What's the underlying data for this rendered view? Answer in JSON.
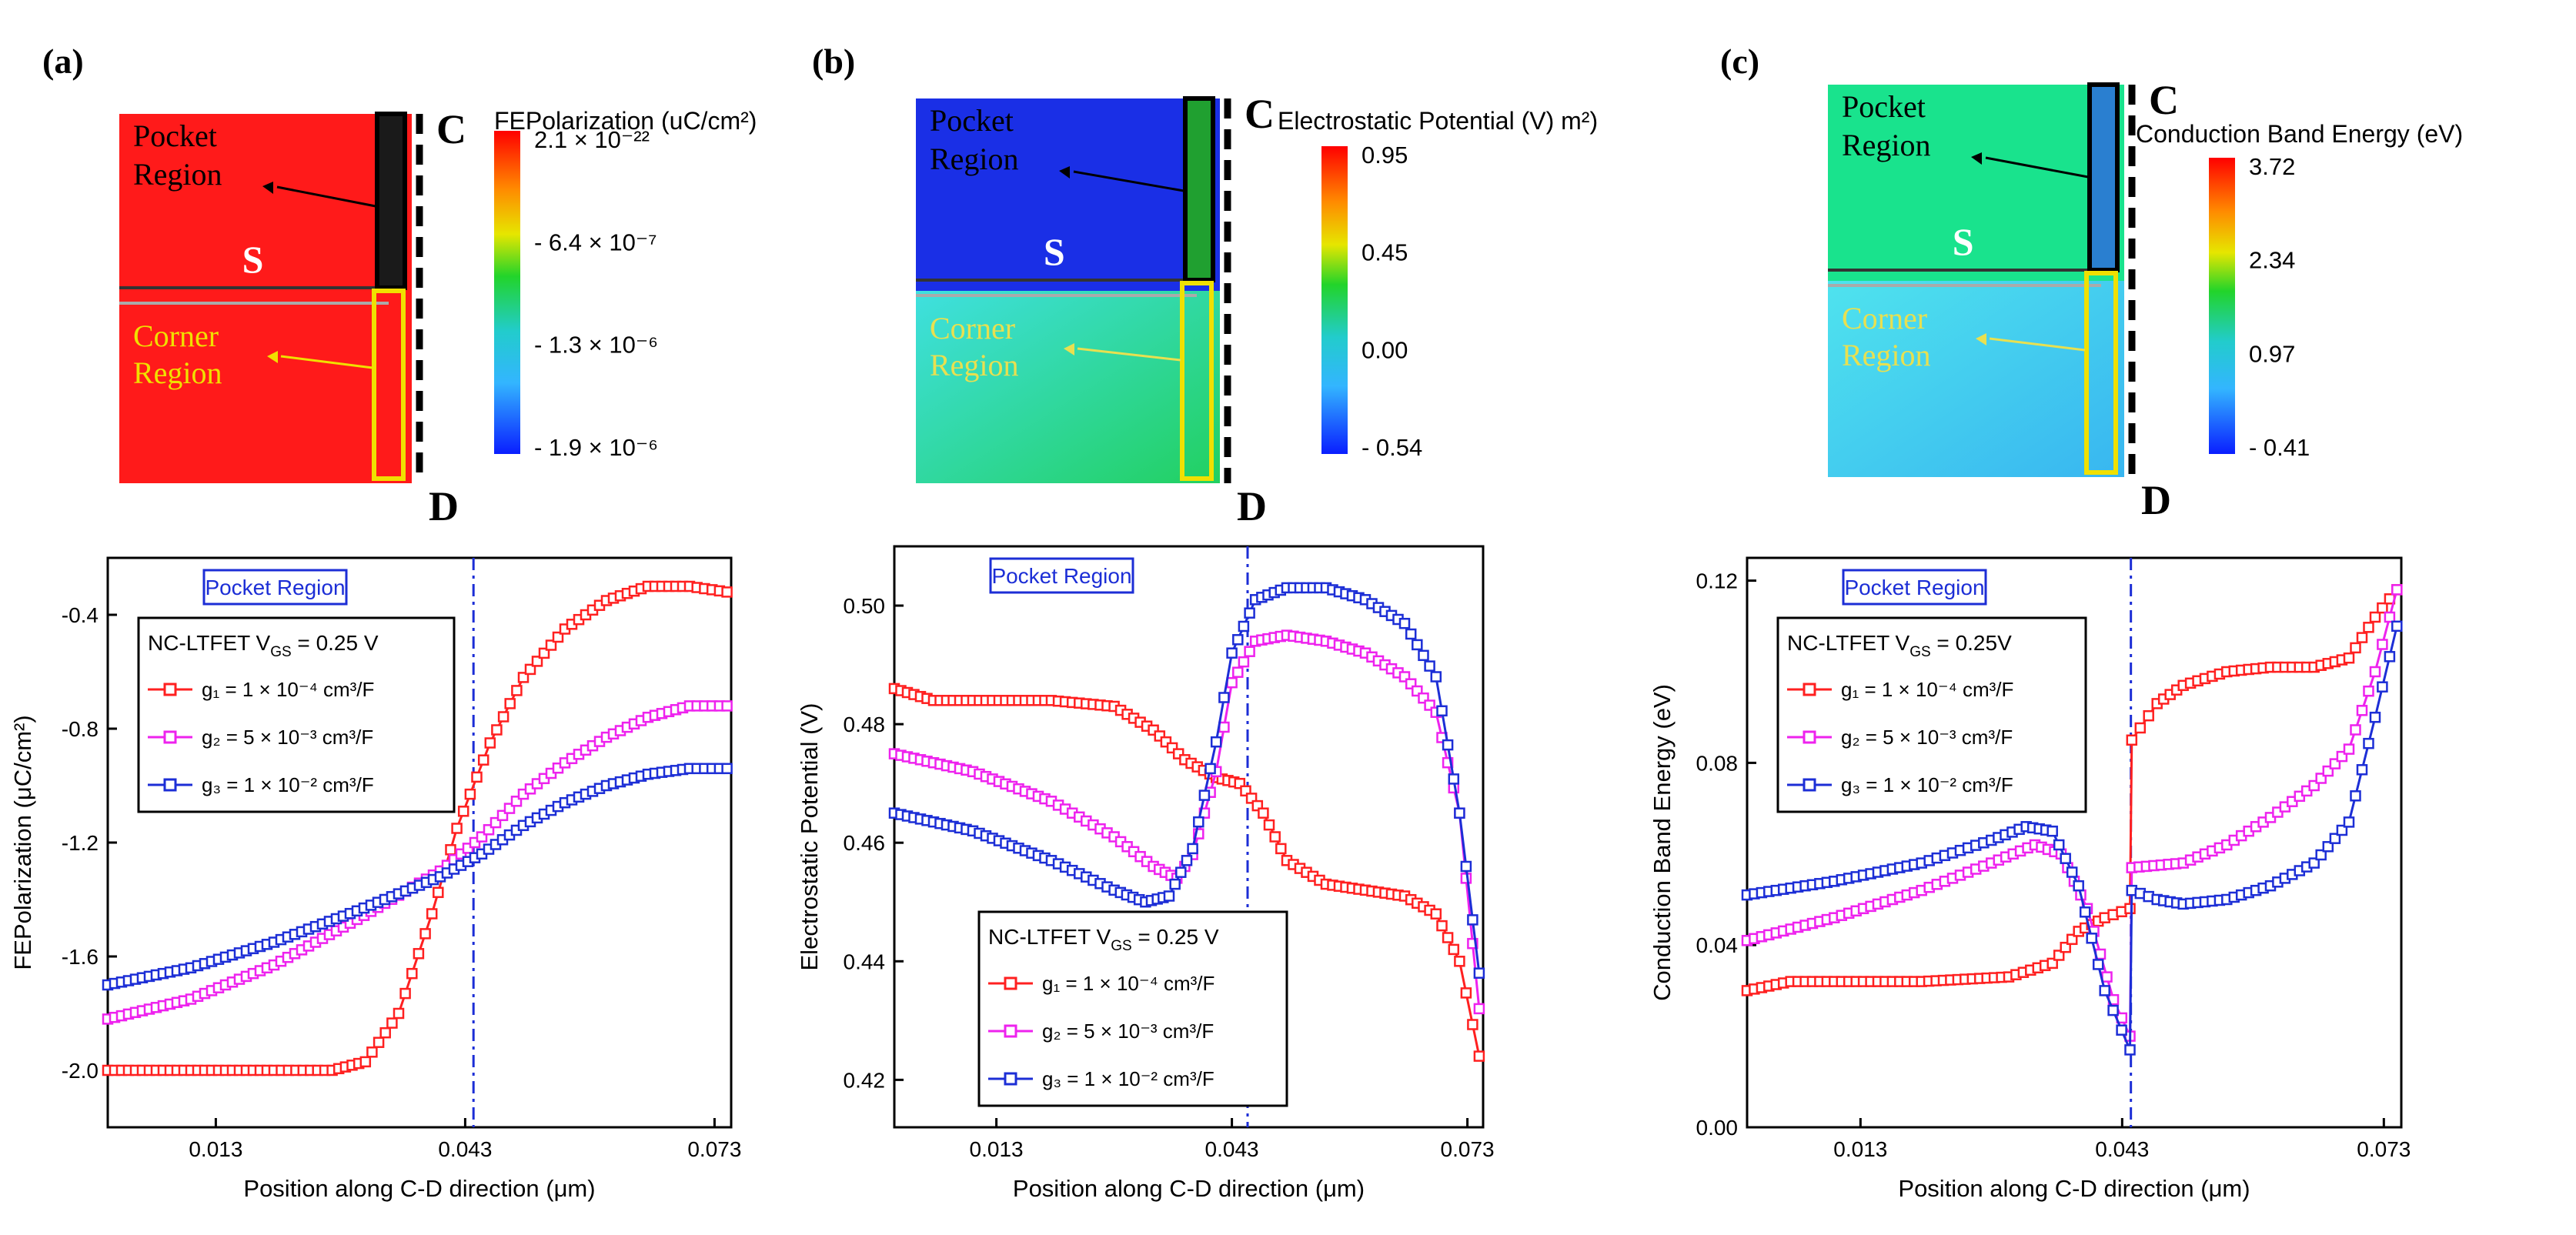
{
  "panels": [
    {
      "label": "(a)",
      "top_label": "C",
      "bottom_label": "D",
      "source_label": "S",
      "pocket_label": [
        "Pocket",
        "Region"
      ],
      "corner_label": [
        "Corner",
        "Region"
      ],
      "map_color": "#ff1a1a",
      "colorbar": {
        "title": "FEPolarization (uC/cm²)",
        "ticks": [
          "2.1 × 10⁻²²",
          "- 6.4 × 10⁻⁷",
          "- 1.3 × 10⁻⁶",
          "- 1.9 × 10⁻⁶"
        ]
      }
    },
    {
      "label": "(b)",
      "top_label": "C",
      "bottom_label": "D",
      "source_label": "S",
      "pocket_label": [
        "Pocket",
        "Region"
      ],
      "corner_label": [
        "Corner",
        "Region"
      ],
      "map_color": "#1a2fe6",
      "colorbar": {
        "title": "Electrostatic Potential (V) m²)",
        "ticks": [
          "0.95",
          "0.45",
          "0.00",
          "- 0.54"
        ]
      }
    },
    {
      "label": "(c)",
      "top_label": "C",
      "bottom_label": "D",
      "source_label": "S",
      "pocket_label": [
        "Pocket",
        "Region"
      ],
      "corner_label": [
        "Corner",
        "Region"
      ],
      "map_color": "#19e38d",
      "colorbar": {
        "title": "Conduction Band Energy (eV)",
        "ticks": [
          "3.72",
          "2.34",
          "0.97",
          "- 0.41"
        ]
      }
    }
  ],
  "chart_data": [
    {
      "type": "line",
      "panel": "a",
      "xlabel": "Position along C-D direction (μm)",
      "ylabel": "FEPolarization (μC/cm²)",
      "xlim": [
        0,
        0.075
      ],
      "ylim": [
        -2.2,
        -0.2
      ],
      "xticks": [
        0.013,
        0.043,
        0.073
      ],
      "xtick_labels": [
        "0.013",
        "0.043",
        "0.073"
      ],
      "yticks": [
        -2.0,
        -1.6,
        -1.2,
        -0.8,
        -0.4
      ],
      "ytick_labels": [
        "-2.0",
        "-1.6",
        "-1.2",
        "-0.8",
        "-0.4"
      ],
      "vline_x": 0.044,
      "region_label": "Pocket Region",
      "legend_title": "NC-LTFET V",
      "legend_title_sub": "GS",
      "legend_title_suffix": " = 0.25 V",
      "series": [
        {
          "name": "g₁ = 1 × 10⁻⁴ cm³/F",
          "color": "#ff2020",
          "points": [
            [
              0.0,
              -2.0
            ],
            [
              0.01,
              -2.0
            ],
            [
              0.02,
              -2.0
            ],
            [
              0.027,
              -2.0
            ],
            [
              0.031,
              -1.97
            ],
            [
              0.035,
              -1.8
            ],
            [
              0.039,
              -1.45
            ],
            [
              0.042,
              -1.15
            ],
            [
              0.046,
              -0.85
            ],
            [
              0.05,
              -0.62
            ],
            [
              0.055,
              -0.45
            ],
            [
              0.06,
              -0.35
            ],
            [
              0.065,
              -0.3
            ],
            [
              0.07,
              -0.3
            ],
            [
              0.0745,
              -0.32
            ]
          ]
        },
        {
          "name": "g₂ = 5 × 10⁻³ cm³/F",
          "color": "#ee22ee",
          "points": [
            [
              0.0,
              -1.82
            ],
            [
              0.01,
              -1.75
            ],
            [
              0.02,
              -1.63
            ],
            [
              0.03,
              -1.47
            ],
            [
              0.04,
              -1.3
            ],
            [
              0.045,
              -1.18
            ],
            [
              0.05,
              -1.03
            ],
            [
              0.055,
              -0.92
            ],
            [
              0.06,
              -0.83
            ],
            [
              0.065,
              -0.76
            ],
            [
              0.07,
              -0.72
            ],
            [
              0.0745,
              -0.72
            ]
          ]
        },
        {
          "name": "g₃ = 1 × 10⁻² cm³/F",
          "color": "#1c2ed6",
          "points": [
            [
              0.0,
              -1.7
            ],
            [
              0.01,
              -1.64
            ],
            [
              0.02,
              -1.55
            ],
            [
              0.03,
              -1.44
            ],
            [
              0.04,
              -1.32
            ],
            [
              0.045,
              -1.24
            ],
            [
              0.05,
              -1.14
            ],
            [
              0.055,
              -1.06
            ],
            [
              0.06,
              -1.0
            ],
            [
              0.065,
              -0.96
            ],
            [
              0.07,
              -0.94
            ],
            [
              0.0745,
              -0.94
            ]
          ]
        }
      ]
    },
    {
      "type": "line",
      "panel": "b",
      "xlabel": "Position along C-D direction (μm)",
      "ylabel": "Electrostatic Potential (V)",
      "xlim": [
        0,
        0.075
      ],
      "ylim": [
        0.412,
        0.51
      ],
      "xticks": [
        0.013,
        0.043,
        0.073
      ],
      "xtick_labels": [
        "0.013",
        "0.043",
        "0.073"
      ],
      "yticks": [
        0.42,
        0.44,
        0.46,
        0.48,
        0.5
      ],
      "ytick_labels": [
        "0.42",
        "0.44",
        "0.46",
        "0.48",
        "0.50"
      ],
      "vline_x": 0.045,
      "region_label": "Pocket Region",
      "legend_title": "NC-LTFET V",
      "legend_title_sub": "GS",
      "legend_title_suffix": " = 0.25 V",
      "series": [
        {
          "name": "g₁ = 1 × 10⁻⁴ cm³/F",
          "color": "#ff2020",
          "points": [
            [
              0.0,
              0.486
            ],
            [
              0.005,
              0.484
            ],
            [
              0.01,
              0.484
            ],
            [
              0.02,
              0.484
            ],
            [
              0.028,
              0.483
            ],
            [
              0.033,
              0.479
            ],
            [
              0.037,
              0.474
            ],
            [
              0.041,
              0.471
            ],
            [
              0.044,
              0.47
            ],
            [
              0.047,
              0.465
            ],
            [
              0.05,
              0.457
            ],
            [
              0.055,
              0.453
            ],
            [
              0.06,
              0.452
            ],
            [
              0.065,
              0.451
            ],
            [
              0.069,
              0.448
            ],
            [
              0.072,
              0.44
            ],
            [
              0.0745,
              0.424
            ]
          ]
        },
        {
          "name": "g₂ = 5 × 10⁻³ cm³/F",
          "color": "#ee22ee",
          "points": [
            [
              0.0,
              0.475
            ],
            [
              0.01,
              0.472
            ],
            [
              0.02,
              0.467
            ],
            [
              0.028,
              0.461
            ],
            [
              0.033,
              0.456
            ],
            [
              0.036,
              0.454
            ],
            [
              0.038,
              0.458
            ],
            [
              0.041,
              0.472
            ],
            [
              0.043,
              0.487
            ],
            [
              0.046,
              0.494
            ],
            [
              0.05,
              0.495
            ],
            [
              0.055,
              0.494
            ],
            [
              0.06,
              0.492
            ],
            [
              0.065,
              0.488
            ],
            [
              0.069,
              0.482
            ],
            [
              0.072,
              0.465
            ],
            [
              0.0745,
              0.432
            ]
          ]
        },
        {
          "name": "g₃ = 1 × 10⁻² cm³/F",
          "color": "#1c2ed6",
          "points": [
            [
              0.0,
              0.465
            ],
            [
              0.01,
              0.462
            ],
            [
              0.02,
              0.457
            ],
            [
              0.028,
              0.452
            ],
            [
              0.032,
              0.45
            ],
            [
              0.035,
              0.451
            ],
            [
              0.038,
              0.459
            ],
            [
              0.041,
              0.477
            ],
            [
              0.043,
              0.492
            ],
            [
              0.046,
              0.501
            ],
            [
              0.05,
              0.503
            ],
            [
              0.055,
              0.503
            ],
            [
              0.06,
              0.501
            ],
            [
              0.065,
              0.497
            ],
            [
              0.069,
              0.488
            ],
            [
              0.072,
              0.465
            ],
            [
              0.0745,
              0.438
            ]
          ]
        }
      ]
    },
    {
      "type": "line",
      "panel": "c",
      "xlabel": "Position along C-D direction (μm)",
      "ylabel": "Conduction Band Energy (eV)",
      "xlim": [
        0,
        0.075
      ],
      "ylim": [
        0,
        0.125
      ],
      "xticks": [
        0.013,
        0.043,
        0.073
      ],
      "xtick_labels": [
        "0.013",
        "0.043",
        "0.073"
      ],
      "yticks": [
        0.0,
        0.04,
        0.08,
        0.12
      ],
      "ytick_labels": [
        "0.00",
        "0.04",
        "0.08",
        "0.12"
      ],
      "vline_x": 0.044,
      "region_label": "Pocket Region",
      "legend_title": "NC-LTFET V",
      "legend_title_sub": "GS",
      "legend_title_suffix": " = 0.25V",
      "series": [
        {
          "name": "g₁ = 1 × 10⁻⁴ cm³/F",
          "color": "#ff2020",
          "points": [
            [
              0.0,
              0.03
            ],
            [
              0.005,
              0.032
            ],
            [
              0.01,
              0.032
            ],
            [
              0.02,
              0.032
            ],
            [
              0.03,
              0.033
            ],
            [
              0.035,
              0.036
            ],
            [
              0.038,
              0.043
            ],
            [
              0.041,
              0.046
            ],
            [
              0.0439,
              0.048
            ],
            [
              0.0441,
              0.085
            ],
            [
              0.047,
              0.093
            ],
            [
              0.05,
              0.097
            ],
            [
              0.055,
              0.1
            ],
            [
              0.06,
              0.101
            ],
            [
              0.065,
              0.101
            ],
            [
              0.069,
              0.103
            ],
            [
              0.072,
              0.112
            ],
            [
              0.0745,
              0.118
            ]
          ]
        },
        {
          "name": "g₂ = 5 × 10⁻³ cm³/F",
          "color": "#ee22ee",
          "points": [
            [
              0.0,
              0.041
            ],
            [
              0.01,
              0.046
            ],
            [
              0.02,
              0.052
            ],
            [
              0.028,
              0.058
            ],
            [
              0.033,
              0.062
            ],
            [
              0.036,
              0.06
            ],
            [
              0.039,
              0.048
            ],
            [
              0.042,
              0.028
            ],
            [
              0.0439,
              0.02
            ],
            [
              0.0441,
              0.057
            ],
            [
              0.05,
              0.058
            ],
            [
              0.055,
              0.062
            ],
            [
              0.06,
              0.068
            ],
            [
              0.065,
              0.075
            ],
            [
              0.069,
              0.083
            ],
            [
              0.072,
              0.1
            ],
            [
              0.0745,
              0.118
            ]
          ]
        },
        {
          "name": "g₃ = 1 × 10⁻² cm³/F",
          "color": "#1c2ed6",
          "points": [
            [
              0.0,
              0.051
            ],
            [
              0.01,
              0.054
            ],
            [
              0.02,
              0.058
            ],
            [
              0.028,
              0.063
            ],
            [
              0.032,
              0.066
            ],
            [
              0.035,
              0.065
            ],
            [
              0.038,
              0.053
            ],
            [
              0.041,
              0.03
            ],
            [
              0.0439,
              0.017
            ],
            [
              0.0441,
              0.052
            ],
            [
              0.047,
              0.05
            ],
            [
              0.05,
              0.049
            ],
            [
              0.055,
              0.05
            ],
            [
              0.06,
              0.053
            ],
            [
              0.065,
              0.058
            ],
            [
              0.069,
              0.067
            ],
            [
              0.072,
              0.09
            ],
            [
              0.0745,
              0.11
            ]
          ]
        }
      ]
    }
  ]
}
